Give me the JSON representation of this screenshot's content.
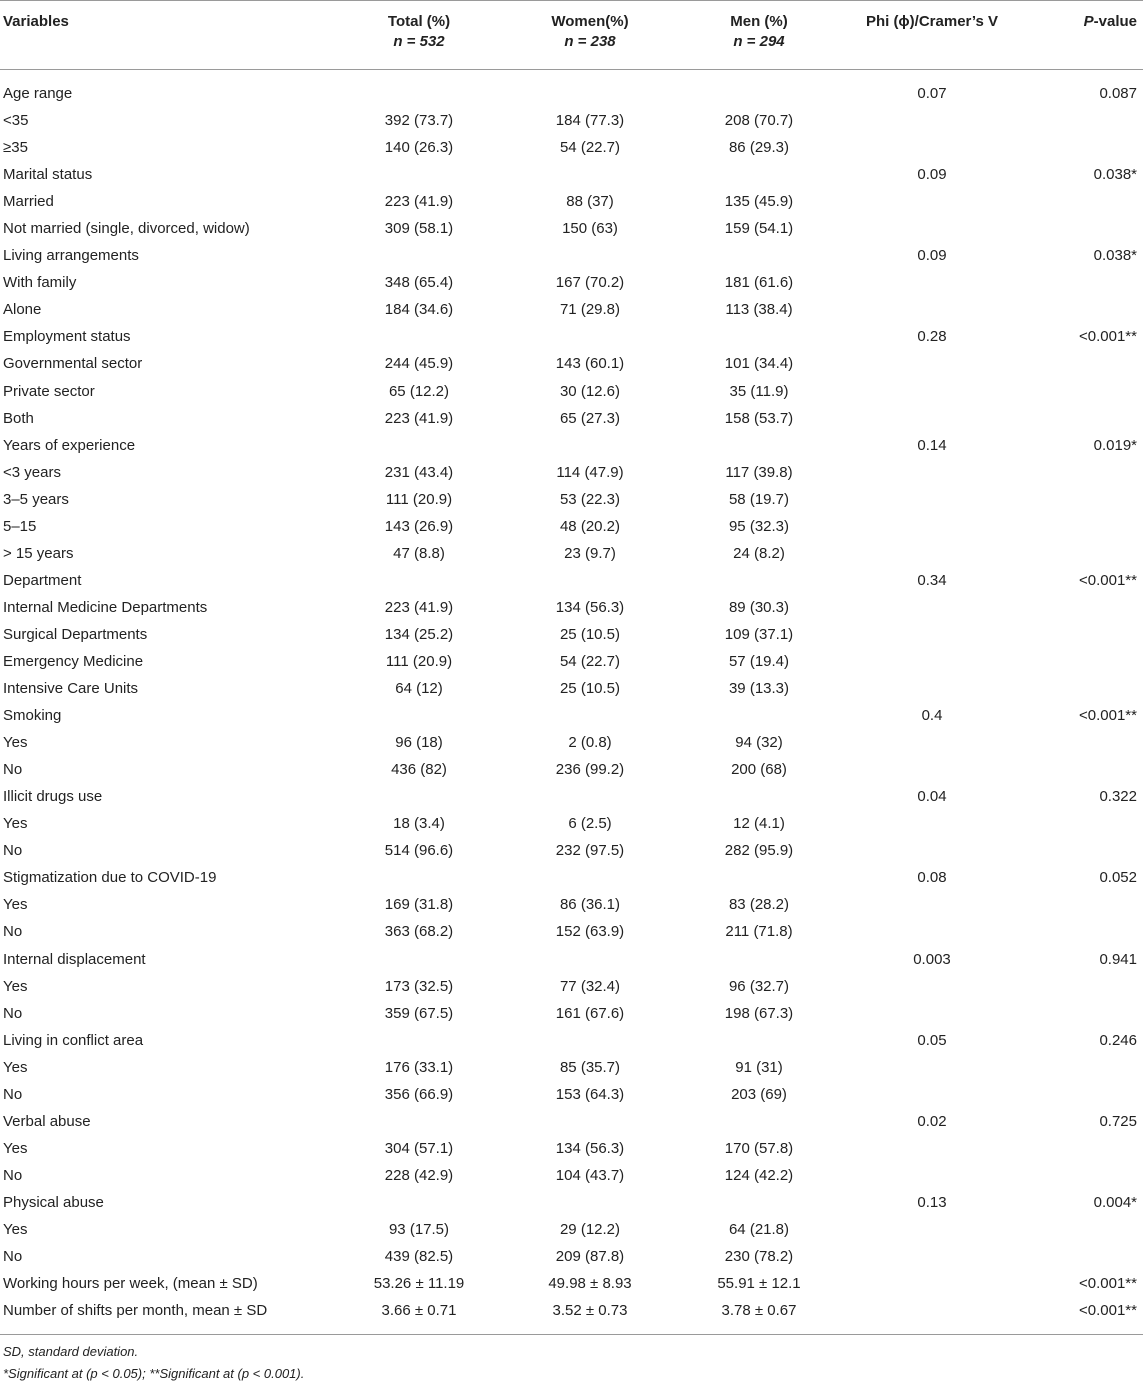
{
  "header": {
    "variables": "Variables",
    "total": "Total (%)",
    "total_n": "n = 532",
    "women": "Women(%)",
    "women_n": "n = 238",
    "men": "Men (%)",
    "men_n": "n = 294",
    "phi": "Phi (ϕ)/Cramer’s V",
    "pvalue_p": "P",
    "pvalue_rest": "-value"
  },
  "rows": [
    {
      "label": "Age range",
      "total": "",
      "women": "",
      "men": "",
      "phi": "0.07",
      "p": "0.087"
    },
    {
      "label": "<35",
      "total": "392 (73.7)",
      "women": "184 (77.3)",
      "men": "208 (70.7)",
      "phi": "",
      "p": ""
    },
    {
      "label": "≥35",
      "total": "140 (26.3)",
      "women": "54 (22.7)",
      "men": "86 (29.3)",
      "phi": "",
      "p": ""
    },
    {
      "label": "Marital status",
      "total": "",
      "women": "",
      "men": "",
      "phi": "0.09",
      "p": "0.038*"
    },
    {
      "label": "Married",
      "total": "223 (41.9)",
      "women": "88 (37)",
      "men": "135 (45.9)",
      "phi": "",
      "p": ""
    },
    {
      "label": "Not married (single, divorced, widow)",
      "total": "309 (58.1)",
      "women": "150 (63)",
      "men": "159 (54.1)",
      "phi": "",
      "p": ""
    },
    {
      "label": "Living arrangements",
      "total": "",
      "women": "",
      "men": "",
      "phi": "0.09",
      "p": "0.038*"
    },
    {
      "label": "With family",
      "total": "348 (65.4)",
      "women": "167 (70.2)",
      "men": "181 (61.6)",
      "phi": "",
      "p": ""
    },
    {
      "label": "Alone",
      "total": "184 (34.6)",
      "women": "71 (29.8)",
      "men": "113 (38.4)",
      "phi": "",
      "p": ""
    },
    {
      "label": "Employment status",
      "total": "",
      "women": "",
      "men": "",
      "phi": "0.28",
      "p": "<0.001**"
    },
    {
      "label": "Governmental sector",
      "total": "244 (45.9)",
      "women": "143 (60.1)",
      "men": "101 (34.4)",
      "phi": "",
      "p": ""
    },
    {
      "label": "Private sector",
      "total": "65 (12.2)",
      "women": "30 (12.6)",
      "men": "35 (11.9)",
      "phi": "",
      "p": ""
    },
    {
      "label": "Both",
      "total": "223 (41.9)",
      "women": "65 (27.3)",
      "men": "158 (53.7)",
      "phi": "",
      "p": ""
    },
    {
      "label": "Years of experience",
      "total": "",
      "women": "",
      "men": "",
      "phi": "0.14",
      "p": "0.019*"
    },
    {
      "label": "<3 years",
      "total": "231 (43.4)",
      "women": "114 (47.9)",
      "men": "117 (39.8)",
      "phi": "",
      "p": ""
    },
    {
      "label": "3–5 years",
      "total": "111 (20.9)",
      "women": "53 (22.3)",
      "men": "58 (19.7)",
      "phi": "",
      "p": ""
    },
    {
      "label": "5–15",
      "total": "143 (26.9)",
      "women": "48 (20.2)",
      "men": "95 (32.3)",
      "phi": "",
      "p": ""
    },
    {
      "label": "> 15 years",
      "total": "47 (8.8)",
      "women": "23 (9.7)",
      "men": "24 (8.2)",
      "phi": "",
      "p": ""
    },
    {
      "label": "Department",
      "total": "",
      "women": "",
      "men": "",
      "phi": "0.34",
      "p": "<0.001**"
    },
    {
      "label": "Internal Medicine Departments",
      "total": "223 (41.9)",
      "women": "134 (56.3)",
      "men": "89 (30.3)",
      "phi": "",
      "p": ""
    },
    {
      "label": "Surgical Departments",
      "total": "134 (25.2)",
      "women": "25 (10.5)",
      "men": "109 (37.1)",
      "phi": "",
      "p": ""
    },
    {
      "label": "Emergency Medicine",
      "total": "111 (20.9)",
      "women": "54 (22.7)",
      "men": "57 (19.4)",
      "phi": "",
      "p": ""
    },
    {
      "label": "Intensive Care Units",
      "total": "64 (12)",
      "women": "25 (10.5)",
      "men": "39 (13.3)",
      "phi": "",
      "p": ""
    },
    {
      "label": "Smoking",
      "total": "",
      "women": "",
      "men": "",
      "phi": "0.4",
      "p": "<0.001**"
    },
    {
      "label": "Yes",
      "total": "96 (18)",
      "women": "2 (0.8)",
      "men": "94 (32)",
      "phi": "",
      "p": ""
    },
    {
      "label": "No",
      "total": "436 (82)",
      "women": "236 (99.2)",
      "men": "200 (68)",
      "phi": "",
      "p": ""
    },
    {
      "label": "Illicit drugs use",
      "total": "",
      "women": "",
      "men": "",
      "phi": "0.04",
      "p": "0.322"
    },
    {
      "label": "Yes",
      "total": "18 (3.4)",
      "women": "6 (2.5)",
      "men": "12 (4.1)",
      "phi": "",
      "p": ""
    },
    {
      "label": "No",
      "total": "514 (96.6)",
      "women": "232 (97.5)",
      "men": "282 (95.9)",
      "phi": "",
      "p": ""
    },
    {
      "label": "Stigmatization due to COVID-19",
      "total": "",
      "women": "",
      "men": "",
      "phi": "0.08",
      "p": "0.052"
    },
    {
      "label": "Yes",
      "total": "169 (31.8)",
      "women": "86 (36.1)",
      "men": "83 (28.2)",
      "phi": "",
      "p": ""
    },
    {
      "label": "No",
      "total": "363 (68.2)",
      "women": "152 (63.9)",
      "men": "211 (71.8)",
      "phi": "",
      "p": ""
    },
    {
      "label": "Internal displacement",
      "total": "",
      "women": "",
      "men": "",
      "phi": "0.003",
      "p": "0.941"
    },
    {
      "label": "Yes",
      "total": "173 (32.5)",
      "women": "77 (32.4)",
      "men": "96 (32.7)",
      "phi": "",
      "p": ""
    },
    {
      "label": "No",
      "total": "359 (67.5)",
      "women": "161 (67.6)",
      "men": "198 (67.3)",
      "phi": "",
      "p": ""
    },
    {
      "label": "Living in conflict area",
      "total": "",
      "women": "",
      "men": "",
      "phi": "0.05",
      "p": "0.246"
    },
    {
      "label": "Yes",
      "total": "176 (33.1)",
      "women": "85 (35.7)",
      "men": "91 (31)",
      "phi": "",
      "p": ""
    },
    {
      "label": "No",
      "total": "356 (66.9)",
      "women": "153 (64.3)",
      "men": "203 (69)",
      "phi": "",
      "p": ""
    },
    {
      "label": "Verbal abuse",
      "total": "",
      "women": "",
      "men": "",
      "phi": "0.02",
      "p": "0.725"
    },
    {
      "label": "Yes",
      "total": "304 (57.1)",
      "women": "134 (56.3)",
      "men": "170 (57.8)",
      "phi": "",
      "p": ""
    },
    {
      "label": "No",
      "total": "228 (42.9)",
      "women": "104 (43.7)",
      "men": "124 (42.2)",
      "phi": "",
      "p": ""
    },
    {
      "label": "Physical abuse",
      "total": "",
      "women": "",
      "men": "",
      "phi": "0.13",
      "p": "0.004*"
    },
    {
      "label": "Yes",
      "total": "93 (17.5)",
      "women": "29 (12.2)",
      "men": "64 (21.8)",
      "phi": "",
      "p": ""
    },
    {
      "label": "No",
      "total": "439 (82.5)",
      "women": "209 (87.8)",
      "men": "230 (78.2)",
      "phi": "",
      "p": ""
    },
    {
      "label": "Working hours per week, (mean ± SD)",
      "total": "53.26 ± 11.19",
      "women": "49.98 ± 8.93",
      "men": "55.91 ± 12.1",
      "phi": "",
      "p": "<0.001**"
    },
    {
      "label": "Number of shifts per month, mean ± SD",
      "total": "3.66 ± 0.71",
      "women": "3.52 ± 0.73",
      "men": "3.78 ± 0.67",
      "phi": "",
      "p": "<0.001**"
    }
  ],
  "footnotes": {
    "line1": "SD, standard deviation.",
    "line2": "*Significant at (p < 0.05); **Significant at (p < 0.001)."
  }
}
